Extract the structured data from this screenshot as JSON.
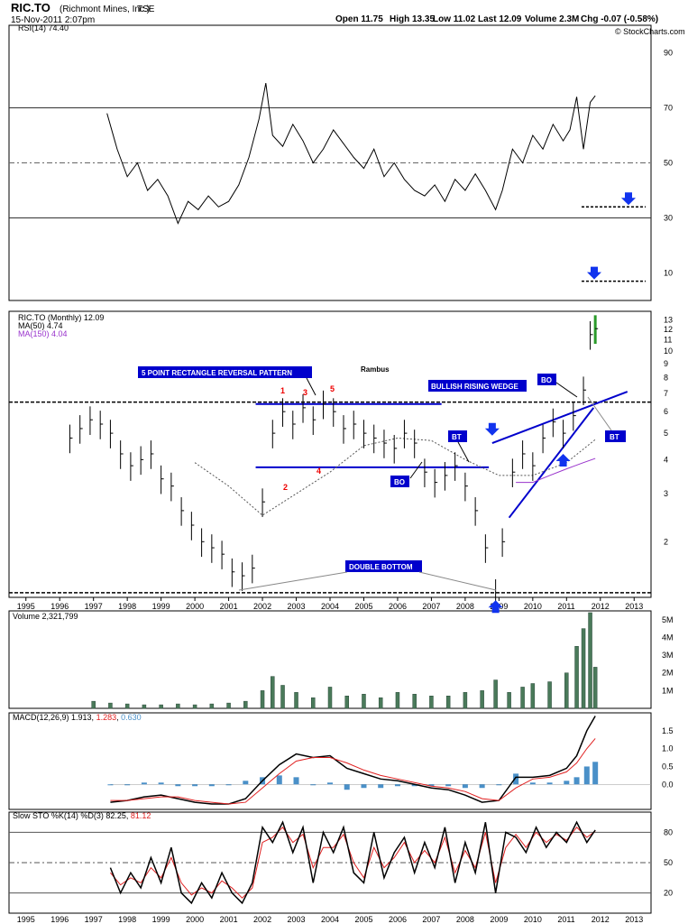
{
  "header": {
    "symbol": "RIC.TO",
    "company": "(Richmont Mines, Inc.)",
    "exchange": "TSE",
    "date": "15-Nov-2011 2:07pm",
    "watermark": "© StockCharts.com",
    "quote": {
      "open": "Open 11.75",
      "high": "High 13.35",
      "low": "Low 11.02",
      "last": "Last 12.09",
      "volume": "Volume 2.3M",
      "chg": "Chg -0.07 (-0.58%)"
    }
  },
  "annotations": {
    "rambus": "Rambus",
    "rect_pattern": "5 POINT RECTANGLE REVERSAL PATTERN",
    "rising_wedge": "BULLISH RISING WEDGE",
    "double_bottom": "DOUBLE BOTTOM",
    "bo1": "BO",
    "bo2": "BO",
    "bt1": "BT",
    "bt2": "BT",
    "points": [
      "1",
      "2",
      "3",
      "4",
      "5"
    ]
  },
  "colors": {
    "price_up": "#000000",
    "ma50": "#555555",
    "ma150": "#9933cc",
    "volume": "#4a7a5a",
    "macd_line": "#000000",
    "signal": "#e02020",
    "hist": "#4a90c8",
    "annotation": "#0000cc",
    "pct_k": "#000000",
    "pct_d": "#e02020",
    "rsi_fill": "#6b9a6b"
  },
  "chart_data": [
    {
      "type": "line",
      "panel": "RSI",
      "label_text": "RSI(14) 74.40",
      "y_ticks": [
        10,
        30,
        50,
        70,
        90
      ],
      "ylim": [
        0,
        100
      ],
      "reference_lines": [
        30,
        50,
        70
      ],
      "x": [
        1997.4,
        1997.7,
        1998.0,
        1998.3,
        1998.6,
        1998.9,
        1999.2,
        1999.5,
        1999.8,
        2000.1,
        2000.4,
        2000.7,
        2001.0,
        2001.3,
        2001.6,
        2001.9,
        2002.1,
        2002.3,
        2002.6,
        2002.9,
        2003.2,
        2003.5,
        2003.8,
        2004.1,
        2004.4,
        2004.7,
        2005.0,
        2005.3,
        2005.6,
        2005.9,
        2006.2,
        2006.5,
        2006.8,
        2007.1,
        2007.4,
        2007.7,
        2008.0,
        2008.3,
        2008.6,
        2008.9,
        2009.1,
        2009.4,
        2009.7,
        2010.0,
        2010.3,
        2010.6,
        2010.9,
        2011.1,
        2011.3,
        2011.5,
        2011.7,
        2011.85
      ],
      "values": [
        68,
        55,
        45,
        50,
        40,
        44,
        38,
        28,
        36,
        33,
        38,
        34,
        36,
        42,
        52,
        66,
        79,
        60,
        56,
        64,
        58,
        50,
        55,
        62,
        57,
        52,
        48,
        55,
        45,
        50,
        44,
        40,
        38,
        42,
        36,
        44,
        40,
        46,
        40,
        33,
        40,
        55,
        50,
        60,
        55,
        64,
        58,
        62,
        74,
        55,
        72,
        74.4
      ],
      "markers": {
        "arrow_levels": [
          34,
          7
        ]
      }
    },
    {
      "type": "bar",
      "panel": "Price",
      "label_text": "RIC.TO (Monthly) 12.09",
      "legend": [
        "MA(50) 4.74",
        "MA(150) 4.04"
      ],
      "y_scale": "log",
      "y_ticks": [
        2,
        3,
        4,
        5,
        6,
        7,
        8,
        9,
        10,
        11,
        12,
        13
      ],
      "ylim": [
        1.25,
        14
      ],
      "x_ticks": [
        1995,
        1996,
        1997,
        1998,
        1999,
        2000,
        2001,
        2002,
        2003,
        2004,
        2005,
        2006,
        2007,
        2008,
        2009,
        2010,
        2011,
        2012,
        2013
      ],
      "x": [
        1996.3,
        1996.6,
        1996.9,
        1997.2,
        1997.5,
        1997.8,
        1998.1,
        1998.4,
        1998.7,
        1999.0,
        1999.3,
        1999.6,
        1999.9,
        2000.2,
        2000.5,
        2000.8,
        2001.1,
        2001.4,
        2001.7,
        2002.0,
        2002.3,
        2002.6,
        2002.9,
        2003.2,
        2003.5,
        2003.8,
        2004.1,
        2004.4,
        2004.7,
        2005.0,
        2005.3,
        2005.6,
        2005.9,
        2006.2,
        2006.5,
        2006.8,
        2007.1,
        2007.4,
        2007.7,
        2008.0,
        2008.3,
        2008.6,
        2008.9,
        2009.1,
        2009.4,
        2009.7,
        2010.0,
        2010.3,
        2010.6,
        2010.9,
        2011.2,
        2011.5,
        2011.7,
        2011.85
      ],
      "values": [
        4.8,
        5.2,
        5.6,
        5.4,
        5.0,
        4.2,
        3.8,
        4.0,
        4.2,
        3.4,
        3.2,
        2.6,
        2.3,
        2.0,
        1.9,
        1.8,
        1.55,
        1.5,
        1.6,
        2.8,
        5.0,
        6.0,
        5.4,
        6.2,
        5.6,
        6.4,
        6.0,
        5.2,
        5.4,
        5.0,
        4.8,
        4.6,
        4.4,
        5.0,
        4.6,
        3.6,
        3.3,
        3.5,
        3.8,
        3.2,
        2.6,
        1.9,
        1.3,
        2.0,
        3.6,
        4.2,
        3.8,
        4.8,
        5.5,
        5.0,
        5.8,
        7.2,
        11.5,
        12.09
      ],
      "ma50": {
        "x": [
          2000.0,
          2001.0,
          2002.0,
          2003.0,
          2004.0,
          2005.0,
          2006.0,
          2007.0,
          2008.0,
          2009.0,
          2010.0,
          2011.0,
          2011.85
        ],
        "values": [
          3.9,
          3.2,
          2.5,
          3.0,
          3.6,
          4.5,
          4.8,
          4.7,
          4.0,
          3.5,
          3.5,
          3.9,
          4.74
        ]
      },
      "ma150": {
        "x": [
          2009.5,
          2010.0,
          2010.5,
          2011.0,
          2011.5,
          2011.85
        ],
        "values": [
          3.3,
          3.3,
          3.5,
          3.7,
          3.9,
          4.04
        ]
      }
    },
    {
      "type": "bar",
      "panel": "Volume",
      "label_text": "Volume 2,321,799",
      "y_ticks": [
        "1M",
        "2M",
        "3M",
        "4M",
        "5M"
      ],
      "ylim": [
        0,
        5500000
      ],
      "x": [
        1997.0,
        1997.5,
        1998.0,
        1998.5,
        1999.0,
        1999.5,
        2000.0,
        2000.5,
        2001.0,
        2001.5,
        2002.0,
        2002.3,
        2002.6,
        2003.0,
        2003.5,
        2004.0,
        2004.5,
        2005.0,
        2005.5,
        2006.0,
        2006.5,
        2007.0,
        2007.5,
        2008.0,
        2008.5,
        2008.9,
        2009.3,
        2009.7,
        2010.0,
        2010.5,
        2011.0,
        2011.3,
        2011.5,
        2011.7,
        2011.85
      ],
      "values": [
        400000,
        300000,
        250000,
        200000,
        200000,
        250000,
        200000,
        250000,
        300000,
        400000,
        1000000,
        1800000,
        1300000,
        900000,
        600000,
        1200000,
        700000,
        800000,
        600000,
        900000,
        800000,
        700000,
        700000,
        900000,
        1000000,
        1600000,
        900000,
        1200000,
        1400000,
        1500000,
        2000000,
        3500000,
        4500000,
        5400000,
        2321799
      ]
    },
    {
      "type": "line",
      "panel": "MACD",
      "label_text": "MACD(12,26,9) 1.913, 1.283, 0.630",
      "legend": [
        "MACD(12,26,9) 1.913",
        "1.283",
        "0.630"
      ],
      "y_ticks": [
        0.0,
        0.5,
        1.0,
        1.5
      ],
      "ylim": [
        -0.7,
        2.0
      ],
      "x": [
        1997.5,
        1998.0,
        1998.5,
        1999.0,
        1999.5,
        2000.0,
        2000.5,
        2001.0,
        2001.5,
        2002.0,
        2002.5,
        2003.0,
        2003.5,
        2004.0,
        2004.5,
        2005.0,
        2005.5,
        2006.0,
        2006.5,
        2007.0,
        2007.5,
        2008.0,
        2008.5,
        2009.0,
        2009.5,
        2010.0,
        2010.5,
        2011.0,
        2011.3,
        2011.6,
        2011.85
      ],
      "series": [
        {
          "name": "MACD(12,26,9) 1.913",
          "values": [
            -0.5,
            -0.45,
            -0.35,
            -0.3,
            -0.4,
            -0.5,
            -0.55,
            -0.55,
            -0.4,
            0.1,
            0.55,
            0.85,
            0.75,
            0.8,
            0.45,
            0.3,
            0.15,
            0.1,
            0.0,
            -0.1,
            -0.15,
            -0.3,
            -0.5,
            -0.45,
            0.2,
            0.2,
            0.25,
            0.45,
            0.8,
            1.5,
            1.913
          ]
        },
        {
          "name": "1.283",
          "values": [
            -0.45,
            -0.45,
            -0.4,
            -0.35,
            -0.35,
            -0.45,
            -0.5,
            -0.55,
            -0.5,
            -0.1,
            0.3,
            0.65,
            0.75,
            0.75,
            0.6,
            0.4,
            0.25,
            0.15,
            0.05,
            -0.05,
            -0.1,
            -0.2,
            -0.4,
            -0.45,
            -0.1,
            0.15,
            0.2,
            0.35,
            0.6,
            1.0,
            1.283
          ]
        },
        {
          "name": "0.630",
          "type": "histogram",
          "values": [
            0.0,
            0.0,
            0.05,
            0.05,
            -0.05,
            -0.05,
            -0.05,
            0.0,
            0.1,
            0.2,
            0.25,
            0.2,
            0.0,
            0.05,
            -0.15,
            -0.1,
            -0.1,
            -0.05,
            -0.05,
            -0.05,
            -0.05,
            -0.1,
            -0.1,
            0.0,
            0.3,
            0.05,
            0.05,
            0.1,
            0.2,
            0.5,
            0.63
          ]
        }
      ]
    },
    {
      "type": "line",
      "panel": "Slow STO",
      "label_text": "Slow STO %K(14) %D(3) 82.25, 81.12",
      "legend": [
        "Slow STO %K(14) %D(3) 82.25",
        "81.12"
      ],
      "y_ticks": [
        20,
        50,
        80
      ],
      "ylim": [
        0,
        100
      ],
      "reference_lines": [
        20,
        50,
        80
      ],
      "x_ticks": [
        1995,
        1996,
        1997,
        1998,
        1999,
        2000,
        2001,
        2002,
        2003,
        2004,
        2005,
        2006,
        2007,
        2008,
        2009,
        2010,
        2011,
        2012,
        2013
      ],
      "x": [
        1997.5,
        1997.8,
        1998.1,
        1998.4,
        1998.7,
        1999.0,
        1999.3,
        1999.6,
        1999.9,
        2000.2,
        2000.5,
        2000.8,
        2001.1,
        2001.4,
        2001.7,
        2002.0,
        2002.3,
        2002.6,
        2002.9,
        2003.2,
        2003.5,
        2003.8,
        2004.1,
        2004.4,
        2004.7,
        2005.0,
        2005.3,
        2005.6,
        2005.9,
        2006.2,
        2006.5,
        2006.8,
        2007.1,
        2007.4,
        2007.7,
        2008.0,
        2008.3,
        2008.6,
        2008.9,
        2009.2,
        2009.5,
        2009.8,
        2010.1,
        2010.4,
        2010.7,
        2011.0,
        2011.3,
        2011.6,
        2011.85
      ],
      "series": [
        {
          "name": "Slow STO %K(14) %D(3) 82.25",
          "values": [
            45,
            20,
            40,
            25,
            55,
            30,
            65,
            20,
            10,
            30,
            15,
            40,
            20,
            10,
            30,
            85,
            70,
            90,
            60,
            85,
            30,
            80,
            60,
            85,
            40,
            30,
            80,
            35,
            60,
            75,
            40,
            70,
            45,
            85,
            30,
            70,
            40,
            90,
            20,
            80,
            75,
            60,
            85,
            65,
            80,
            70,
            90,
            70,
            82.25
          ]
        },
        {
          "name": "81.12",
          "values": [
            40,
            28,
            35,
            30,
            45,
            35,
            55,
            30,
            18,
            25,
            20,
            32,
            25,
            15,
            25,
            70,
            75,
            85,
            70,
            78,
            45,
            65,
            65,
            78,
            50,
            35,
            65,
            45,
            55,
            70,
            50,
            62,
            50,
            75,
            40,
            62,
            45,
            80,
            30,
            65,
            78,
            65,
            80,
            70,
            78,
            72,
            85,
            75,
            81.12
          ]
        }
      ]
    }
  ]
}
